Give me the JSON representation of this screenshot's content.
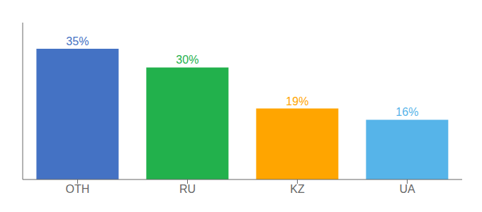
{
  "chart_data": {
    "type": "bar",
    "categories": [
      "OTH",
      "RU",
      "KZ",
      "UA"
    ],
    "values": [
      35,
      30,
      19,
      16
    ],
    "value_labels": [
      "35%",
      "30%",
      "19%",
      "16%"
    ],
    "colors": [
      "#4472C4",
      "#22B14C",
      "#FFA500",
      "#56B4E9"
    ],
    "ylim": [
      0,
      42
    ],
    "data_labels": true,
    "tick_labels": "x"
  }
}
